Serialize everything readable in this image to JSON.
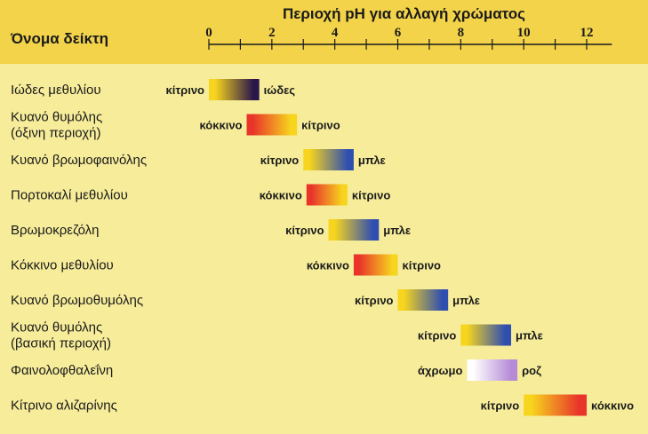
{
  "header": {
    "title": "Περιοχή pH για αλλαγή χρώματος",
    "column_label": "Όνομα δείκτη"
  },
  "colors": {
    "background": "#f6ec9a",
    "header_band": "#f3d34a",
    "κίτρινο": "#f7d51e",
    "ιώδες": "#2a174a",
    "κόκκινο": "#e8342a",
    "μπλε": "#2f4fb0",
    "άχρωμο": "#ffffff",
    "ροζ": "#b58ad6"
  },
  "chart_data": {
    "type": "range",
    "title": "Περιοχή pH για αλλαγή χρώματος",
    "xlim": [
      0,
      12.8
    ],
    "x_ticks": [
      0,
      2,
      4,
      6,
      8,
      10,
      12
    ],
    "minor_step": 1,
    "indicators": [
      {
        "name": [
          "Ιώδες μεθυλίου"
        ],
        "from": 0.0,
        "to": 1.6,
        "low_label": "κίτρινο",
        "high_label": "ιώδες",
        "low_color": "κίτρινο",
        "high_color": "ιώδες"
      },
      {
        "name": [
          "Κυανό θυμόλης",
          "(όξινη περιοχή)"
        ],
        "from": 1.2,
        "to": 2.8,
        "low_label": "κόκκινο",
        "high_label": "κίτρινο",
        "low_color": "κόκκινο",
        "high_color": "κίτρινο"
      },
      {
        "name": [
          "Κυανό βρωμοφαινόλης"
        ],
        "from": 3.0,
        "to": 4.6,
        "low_label": "κίτρινο",
        "high_label": "μπλε",
        "low_color": "κίτρινο",
        "high_color": "μπλε"
      },
      {
        "name": [
          "Πορτοκαλί μεθυλίου"
        ],
        "from": 3.1,
        "to": 4.4,
        "low_label": "κόκκινο",
        "high_label": "κίτρινο",
        "low_color": "κόκκινο",
        "high_color": "κίτρινο"
      },
      {
        "name": [
          "Βρωμοκρεζόλη"
        ],
        "from": 3.8,
        "to": 5.4,
        "low_label": "κίτρινο",
        "high_label": "μπλε",
        "low_color": "κίτρινο",
        "high_color": "μπλε"
      },
      {
        "name": [
          "Κόκκινο μεθυλίου"
        ],
        "from": 4.6,
        "to": 6.0,
        "low_label": "κόκκινο",
        "high_label": "κίτρινο",
        "low_color": "κόκκινο",
        "high_color": "κίτρινο"
      },
      {
        "name": [
          "Κυανό βρωμοθυμόλης"
        ],
        "from": 6.0,
        "to": 7.6,
        "low_label": "κίτρινο",
        "high_label": "μπλε",
        "low_color": "κίτρινο",
        "high_color": "μπλε"
      },
      {
        "name": [
          "Κυανό θυμόλης",
          "(βασική περιοχή)"
        ],
        "from": 8.0,
        "to": 9.6,
        "low_label": "κίτρινο",
        "high_label": "μπλε",
        "low_color": "κίτρινο",
        "high_color": "μπλε"
      },
      {
        "name": [
          "Φαινολοφθαλεΐνη"
        ],
        "from": 8.2,
        "to": 9.8,
        "low_label": "άχρωμο",
        "high_label": "ροζ",
        "low_color": "άχρωμο",
        "high_color": "ροζ"
      },
      {
        "name": [
          "Κίτρινο αλιζαρίνης"
        ],
        "from": 10.0,
        "to": 12.0,
        "low_label": "κίτρινο",
        "high_label": "κόκκινο",
        "low_color": "κίτρινο",
        "high_color": "κόκκινο"
      }
    ]
  }
}
